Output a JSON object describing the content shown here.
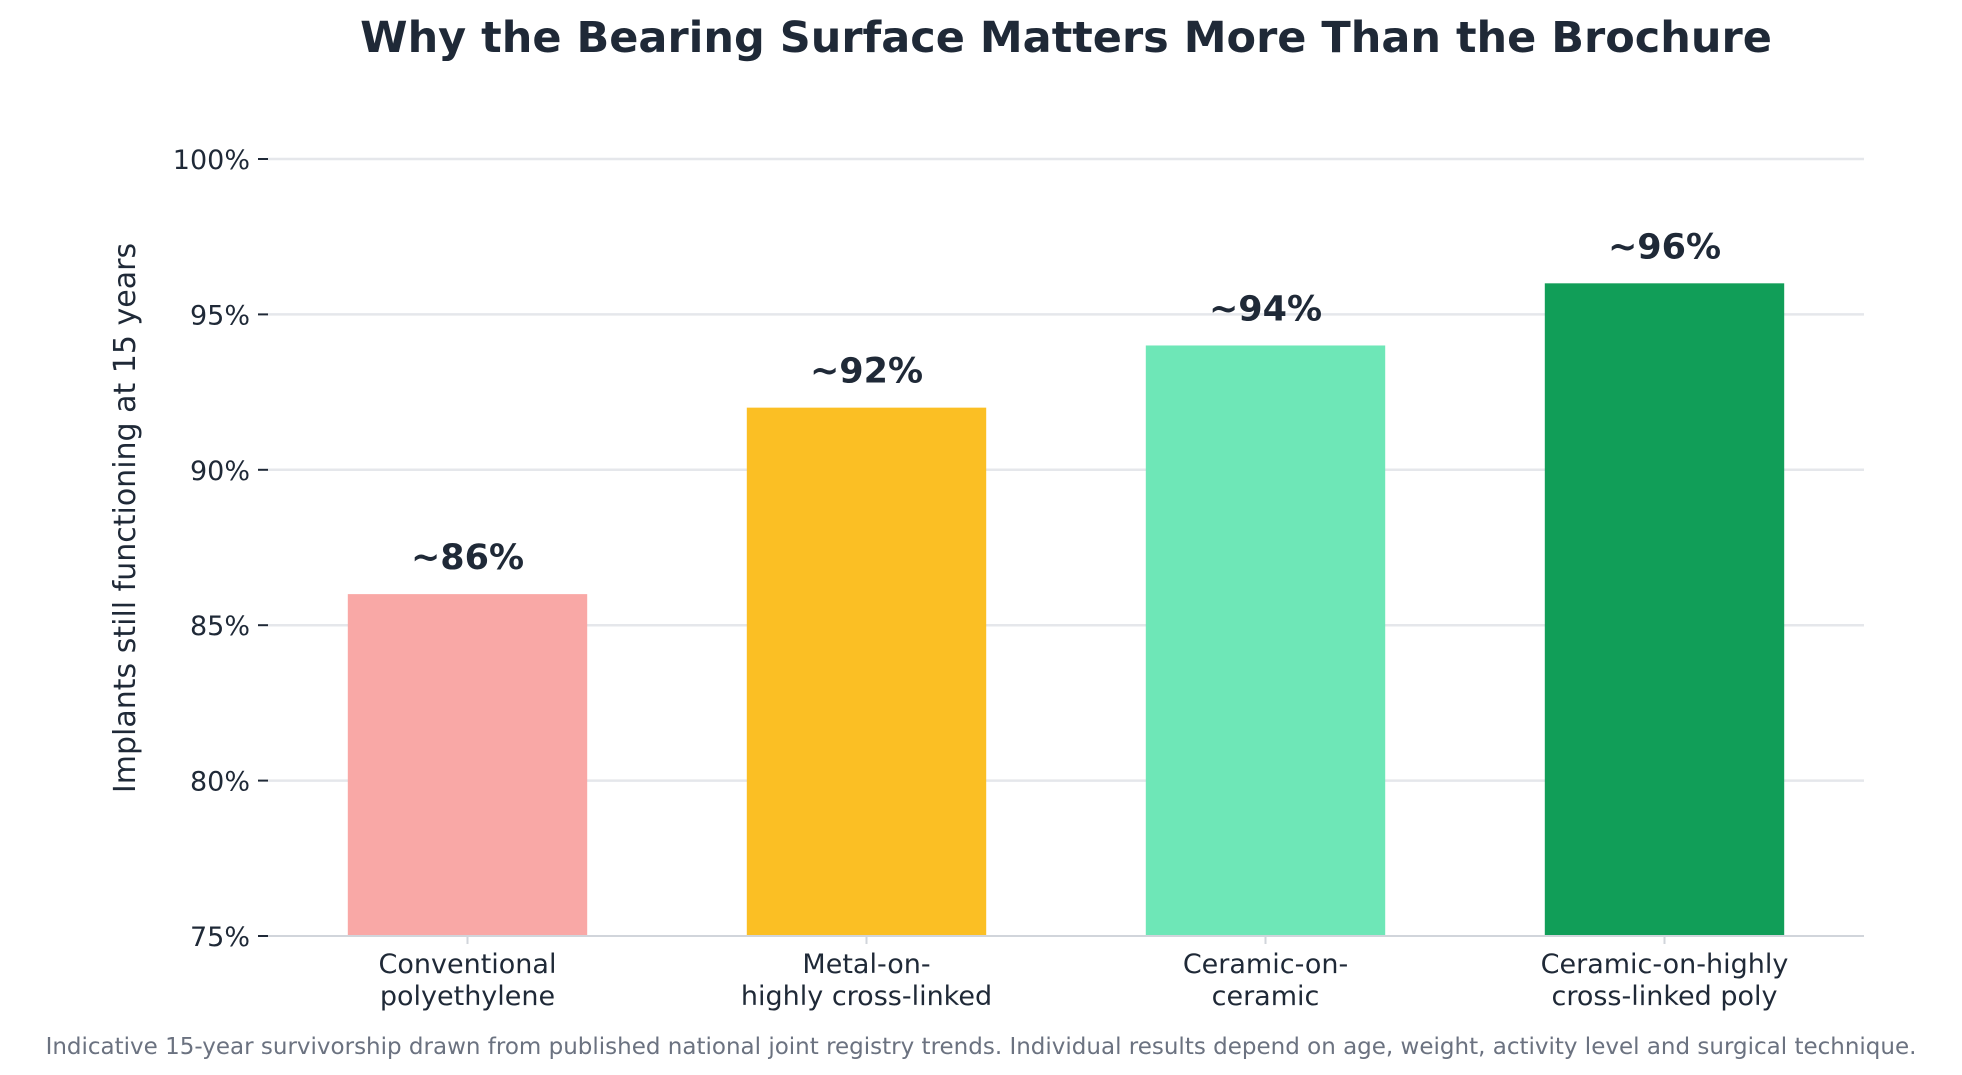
{
  "chart_data": {
    "type": "bar",
    "title": "Why the Bearing Surface Matters More Than the Brochure",
    "ylabel": "Implants still functioning at 15 years",
    "xlabel": "",
    "ylim": [
      75,
      100
    ],
    "yticks": [
      75,
      80,
      85,
      90,
      95,
      100
    ],
    "ytick_labels": [
      "75%",
      "80%",
      "85%",
      "90%",
      "95%",
      "100%"
    ],
    "grid": "horizontal",
    "categories": [
      [
        "Conventional",
        "polyethylene"
      ],
      [
        "Metal-on-",
        "highly cross-linked"
      ],
      [
        "Ceramic-on-",
        "ceramic"
      ],
      [
        "Ceramic-on-highly",
        "cross-linked poly"
      ]
    ],
    "values": [
      86,
      92,
      94,
      96
    ],
    "data_labels": [
      "~86%",
      "~92%",
      "~94%",
      "~96%"
    ],
    "colors": [
      "#f9a8a6",
      "#fbbf24",
      "#6ee7b7",
      "#119e58"
    ],
    "footnote": "Indicative 15-year survivorship drawn from published national joint registry trends. Individual results depend on age, weight, activity level and surgical technique."
  },
  "style": {
    "grid_color": "#e5e7eb",
    "axis_color": "#d1d5db",
    "text_color": "#1f2937",
    "footnote_color": "#6b7280"
  }
}
